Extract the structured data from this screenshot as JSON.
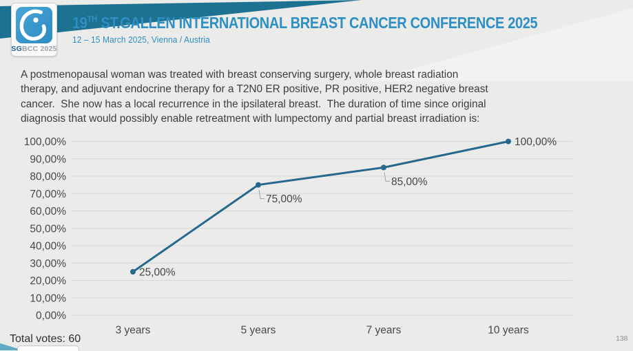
{
  "header": {
    "logo": {
      "icon": "sgbcc-breast-logo",
      "caption_bold": "SG",
      "caption_rest": "BCC 2025"
    },
    "title_num": "19",
    "title_sup": "TH",
    "title_rest": " ST.GALLEN INTERNATIONAL BREAST CANCER CONFERENCE 2025",
    "subtitle": "12 – 15 March 2025, Vienna / Austria",
    "accent_color": "#2e8fc4"
  },
  "question_lines": [
    "A postmenopausal woman was treated with breast conserving surgery, whole breast radiation",
    "therapy, and adjuvant endocrine therapy for a T2N0 ER positive, PR positive, HER2 negative breast",
    "cancer.  She now has a local recurrence in the ipsilateral breast.  The duration of time since original",
    "diagnosis that would possibly enable retreatment with lumpectomy and partial breast irradiation is:"
  ],
  "chart_data": {
    "type": "line",
    "title": "",
    "xlabel": "",
    "ylabel": "",
    "categories": [
      "3 years",
      "5 years",
      "7 years",
      "10 years"
    ],
    "values": [
      25,
      75,
      85,
      100
    ],
    "point_labels": [
      "25,00%",
      "75,00%",
      "85,00%",
      "100,00%"
    ],
    "label_placement": [
      "right",
      "below-leader",
      "below-leader",
      "right"
    ],
    "y_ticks": [
      "0,00%",
      "10,00%",
      "20,00%",
      "30,00%",
      "40,00%",
      "50,00%",
      "60,00%",
      "70,00%",
      "80,00%",
      "90,00%",
      "100,00%"
    ],
    "ylim": [
      0,
      100
    ],
    "grid": true,
    "legend": "none",
    "line_color": "#26688e",
    "grid_color": "#d8d8d6",
    "tick_color": "#484848",
    "leader_color": "#a2a2a0"
  },
  "footer": {
    "total_votes": "Total votes: 60",
    "page_number": "138"
  }
}
